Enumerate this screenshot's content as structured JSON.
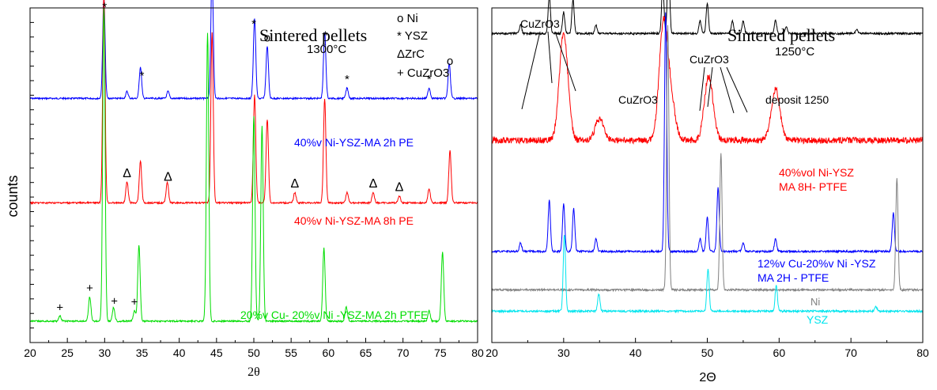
{
  "chart_data": [
    {
      "type": "line",
      "title": "Sintered pellets",
      "subtitle": "1300°C",
      "xlabel": "2θ",
      "ylabel": "counts",
      "xlim": [
        20,
        80
      ],
      "xticks": [
        20,
        25,
        30,
        35,
        40,
        45,
        50,
        55,
        60,
        65,
        70,
        75,
        80
      ],
      "legend": [
        "o Ni",
        "* YSZ",
        "ΔZrC",
        "+ CuZrO3"
      ],
      "series": [
        {
          "name": "40%v Ni-YSZ-MA 2h PE",
          "color": "#0000ff",
          "baseline": 2.6,
          "peaks": [
            [
              29.9,
              2.9
            ],
            [
              34.8,
              0.9
            ],
            [
              44.4,
              3.6
            ],
            [
              50.1,
              2.3
            ],
            [
              51.8,
              1.5
            ],
            [
              59.5,
              1.9
            ],
            [
              62.5,
              0.3
            ],
            [
              73.5,
              0.3
            ],
            [
              76.2,
              1.0
            ],
            [
              33.0,
              0.2
            ],
            [
              38.5,
              0.2
            ]
          ]
        },
        {
          "name": "40%v Ni-YSZ-MA 8h PE",
          "color": "#ff0000",
          "baseline": 5.6,
          "peaks": [
            [
              29.9,
              6.0
            ],
            [
              34.8,
              1.2
            ],
            [
              44.4,
              4.9
            ],
            [
              50.1,
              3.1
            ],
            [
              51.8,
              2.4
            ],
            [
              59.5,
              3.0
            ],
            [
              33.0,
              0.6
            ],
            [
              38.4,
              0.6
            ],
            [
              55.5,
              0.3
            ],
            [
              62.5,
              0.3
            ],
            [
              66.0,
              0.3
            ],
            [
              69.5,
              0.2
            ],
            [
              73.5,
              0.4
            ],
            [
              76.3,
              1.5
            ]
          ]
        },
        {
          "name": "20%v Cu- 20%v Ni -YSZ-MA 2h PTFE",
          "color": "#00dd00",
          "baseline": 9.0,
          "peaks": [
            [
              24.0,
              0.15
            ],
            [
              28.0,
              0.7
            ],
            [
              29.9,
              9.0
            ],
            [
              31.2,
              0.4
            ],
            [
              34.0,
              0.3
            ],
            [
              34.6,
              2.2
            ],
            [
              43.8,
              8.3
            ],
            [
              50.0,
              5.9
            ],
            [
              51.1,
              5.6
            ],
            [
              59.4,
              2.1
            ],
            [
              62.4,
              0.4
            ],
            [
              73.5,
              0.3
            ],
            [
              75.3,
              2.0
            ]
          ]
        }
      ],
      "markers": [
        {
          "x": 30.0,
          "symbol": "*"
        },
        {
          "x": 44.3,
          "symbol": "o"
        },
        {
          "x": 35.0,
          "symbol": "*"
        },
        {
          "x": 50.0,
          "symbol": "*"
        },
        {
          "x": 51.8,
          "symbol": "o"
        },
        {
          "x": 59.6,
          "symbol": "*"
        },
        {
          "x": 62.5,
          "symbol": "*"
        },
        {
          "x": 73.5,
          "symbol": "*"
        },
        {
          "x": 76.3,
          "symbol": "o"
        },
        {
          "x": 33.0,
          "symbol": "Δ"
        },
        {
          "x": 38.5,
          "symbol": "Δ"
        },
        {
          "x": 55.5,
          "symbol": "Δ"
        },
        {
          "x": 66.0,
          "symbol": "Δ"
        },
        {
          "x": 69.5,
          "symbol": "Δ"
        },
        {
          "x": 24.0,
          "symbol": "+"
        },
        {
          "x": 28.0,
          "symbol": "+"
        },
        {
          "x": 31.3,
          "symbol": "+"
        },
        {
          "x": 34.0,
          "symbol": "+"
        }
      ]
    },
    {
      "type": "line",
      "title": "Sintered pellets",
      "subtitle": "1250°C",
      "xlabel": "2Θ",
      "ylabel": "",
      "xlim": [
        20,
        80
      ],
      "xticks": [
        20,
        30,
        40,
        50,
        60,
        70,
        80
      ],
      "annotations": [
        "CuZrO3",
        "CuZrO3",
        "CuZrO3"
      ],
      "series": [
        {
          "name": "deposit 1250",
          "color": "#000000",
          "baseline": 0.6,
          "peaks": [
            [
              24.0,
              0.2
            ],
            [
              28.0,
              0.9
            ],
            [
              30.0,
              0.5
            ],
            [
              31.3,
              0.8
            ],
            [
              34.5,
              0.2
            ],
            [
              43.8,
              1.2
            ],
            [
              44.6,
              1.8
            ],
            [
              49.0,
              0.3
            ],
            [
              50.0,
              0.7
            ],
            [
              53.5,
              0.3
            ],
            [
              55.0,
              0.3
            ],
            [
              59.5,
              0.3
            ],
            [
              61.0,
              0.15
            ],
            [
              70.8,
              0.1
            ]
          ]
        },
        {
          "name": "40%vol Ni-YSZ MA 8H- PTFE",
          "color": "#ff0000",
          "baseline": 3.1,
          "peaks": [
            [
              30.0,
              2.5
            ],
            [
              35.0,
              0.5
            ],
            [
              43.9,
              2.7
            ],
            [
              45.0,
              0.8
            ],
            [
              50.2,
              1.5
            ],
            [
              59.5,
              1.2
            ]
          ]
        },
        {
          "name": "12%v Cu-20%v Ni -YSZ MA 2H - PTFE",
          "color": "#0000ff",
          "baseline": 5.7,
          "peaks": [
            [
              24.0,
              0.2
            ],
            [
              28.0,
              1.2
            ],
            [
              30.0,
              1.1
            ],
            [
              31.4,
              1.0
            ],
            [
              34.5,
              0.3
            ],
            [
              44.2,
              5.6
            ],
            [
              49.0,
              0.3
            ],
            [
              50.0,
              0.8
            ],
            [
              51.5,
              1.5
            ],
            [
              55.0,
              0.2
            ],
            [
              59.5,
              0.3
            ],
            [
              75.9,
              0.9
            ]
          ]
        },
        {
          "name": "Ni",
          "color": "#808080",
          "baseline": 6.6,
          "peaks": [
            [
              44.5,
              6.2
            ],
            [
              51.9,
              3.2
            ],
            [
              76.4,
              2.6
            ]
          ]
        },
        {
          "name": "YSZ",
          "color": "#00e5ee",
          "baseline": 7.1,
          "peaks": [
            [
              30.1,
              1.8
            ],
            [
              34.9,
              0.4
            ],
            [
              50.1,
              1.0
            ],
            [
              59.6,
              0.6
            ],
            [
              73.5,
              0.1
            ]
          ]
        }
      ]
    }
  ]
}
